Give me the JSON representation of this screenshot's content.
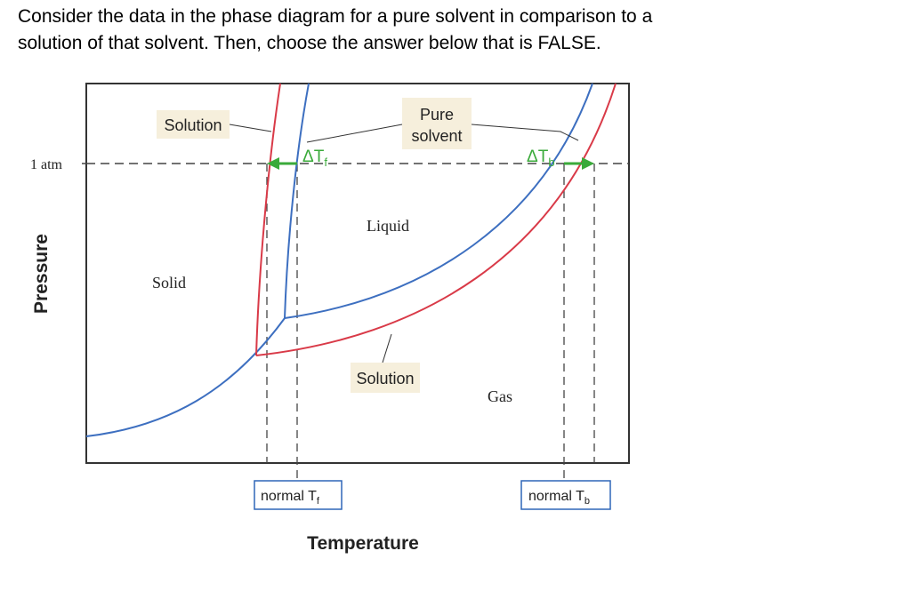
{
  "question": {
    "line1": "Consider the data in the phase diagram for a pure solvent in comparison to a",
    "line2": "solution of that solvent.  Then, choose the answer below that is FALSE."
  },
  "diagram": {
    "y_axis_label": "Pressure",
    "x_axis_label": "Temperature",
    "pressure_marker": "1 atm",
    "regions": {
      "solid": "Solid",
      "liquid": "Liquid",
      "gas": "Gas"
    },
    "callouts": {
      "solution_top": "Solution",
      "pure_solvent_line1": "Pure",
      "pure_solvent_line2": "solvent",
      "solution_bottom": "Solution"
    },
    "delta_tf": {
      "base": "ΔT",
      "sub": "f"
    },
    "delta_tb": {
      "base": "ΔT",
      "sub": "b"
    },
    "normal_tf": {
      "base": "normal T",
      "sub": "f"
    },
    "normal_tb": {
      "base": "normal T",
      "sub": "b"
    },
    "colors": {
      "pure_solvent": "#3d6fc0",
      "solution": "#d93a48",
      "arrow": "#3aaa3a",
      "callout_fill": "#f6efdc",
      "label_box_border": "#2f66b8"
    }
  }
}
